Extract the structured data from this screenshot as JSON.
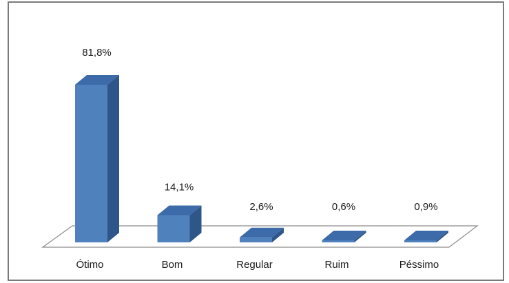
{
  "chart_data": {
    "type": "bar",
    "style": "3d-column",
    "categories": [
      "Ótimo",
      "Bom",
      "Regular",
      "Ruim",
      "Péssimo"
    ],
    "values": [
      81.8,
      14.1,
      2.6,
      0.6,
      0.9
    ],
    "data_labels": [
      "81,8%",
      "14,1%",
      "2,6%",
      "0,6%",
      "0,9%"
    ],
    "unit": "%",
    "title": "",
    "xlabel": "",
    "ylabel": "",
    "ylim": [
      0,
      100
    ],
    "grid": false,
    "legend": "none",
    "colors": {
      "bar_front": "#4f81bd",
      "bar_side": "#2f5689",
      "bar_top": "#3d6aa8",
      "floor": "#ffffff",
      "floor_stroke": "#8c8c8c",
      "frame": "#7a7a7a"
    }
  }
}
